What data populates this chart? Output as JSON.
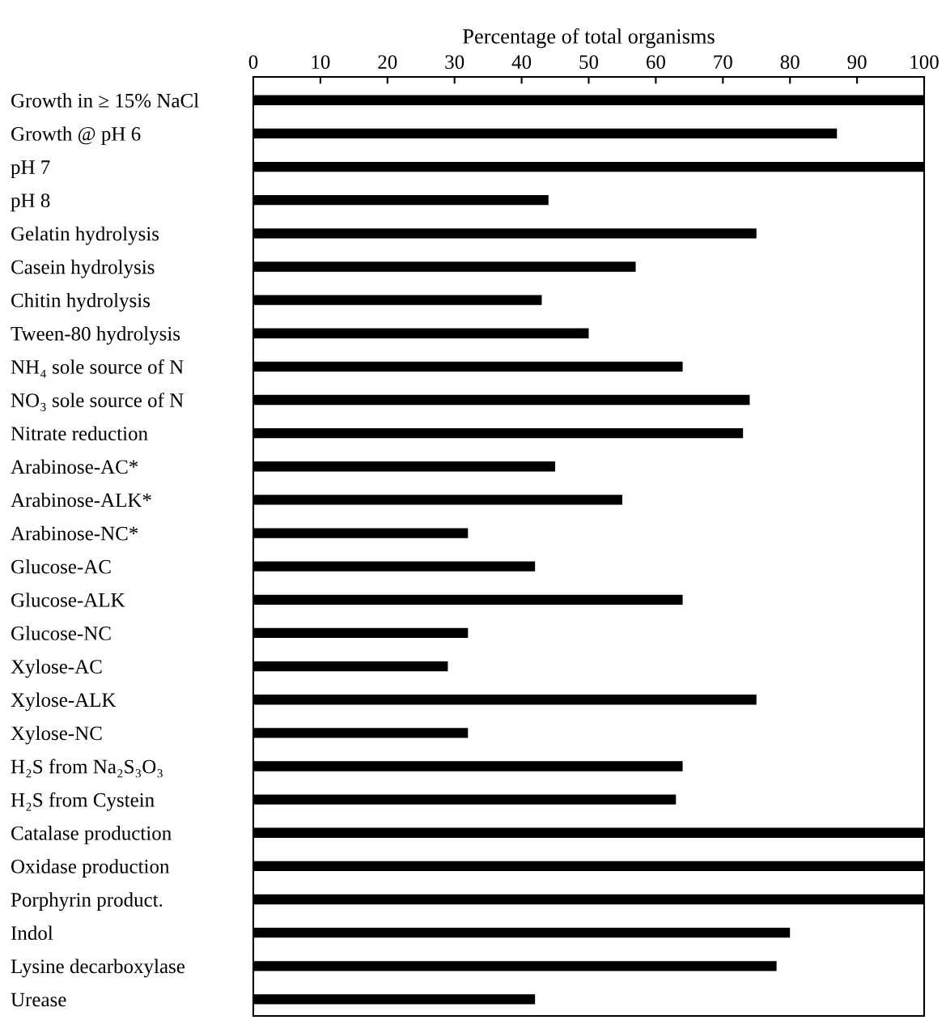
{
  "chart_data": {
    "type": "bar",
    "orientation": "horizontal",
    "xlabel": "Percentage of total organisms",
    "categories": [
      "Growth in ≥ 15% NaCl",
      "Growth @ pH 6",
      "pH 7",
      "pH 8",
      "Gelatin hydrolysis",
      "Casein hydrolysis",
      "Chitin hydrolysis",
      "Tween-80 hydrolysis",
      "NH₄ sole source of N",
      "NO₃ sole source of N",
      "Nitrate reduction",
      "Arabinose-AC*",
      "Arabinose-ALK*",
      "Arabinose-NC*",
      "Glucose-AC",
      "Glucose-ALK",
      "Glucose-NC",
      "Xylose-AC",
      "Xylose-ALK",
      "Xylose-NC",
      "H₂S from Na₂S₃O₃",
      "H₂S from Cystein",
      "Catalase production",
      "Oxidase production",
      "Porphyrin product.",
      "Indol",
      "Lysine decarboxylase",
      "Urease"
    ],
    "values": [
      100,
      87,
      100,
      44,
      75,
      57,
      43,
      50,
      64,
      74,
      73,
      45,
      55,
      32,
      42,
      64,
      32,
      29,
      75,
      32,
      64,
      63,
      100,
      100,
      100,
      80,
      78,
      42
    ],
    "color": "#000000",
    "xlim": [
      0,
      100
    ],
    "xticks": [
      0,
      10,
      20,
      30,
      40,
      50,
      60,
      70,
      80,
      90,
      100
    ],
    "grid": false,
    "legend": false
  }
}
